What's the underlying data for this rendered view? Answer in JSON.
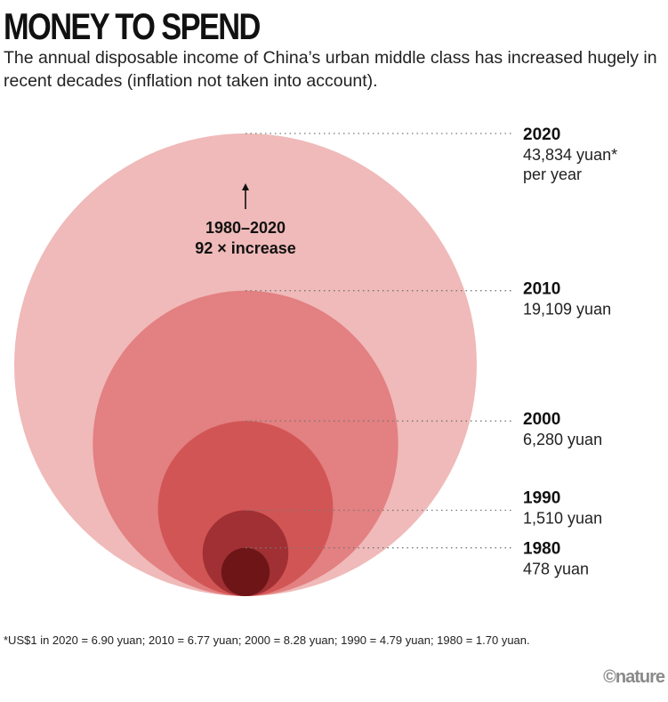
{
  "chart_data": {
    "type": "nested-circle",
    "title": "MONEY TO SPEND",
    "subtitle": "The annual disposable income of China’s urban middle class has increased hugely in recent decades (inflation not taken into account).",
    "unit": "yuan",
    "series": [
      {
        "year": "2020",
        "value": 43834,
        "label_lines": [
          "43,834 yuan*",
          "per year"
        ],
        "color": "#efbab9"
      },
      {
        "year": "2010",
        "value": 19109,
        "label_lines": [
          "19,109 yuan"
        ],
        "color": "#e38081"
      },
      {
        "year": "2000",
        "value": 6280,
        "label_lines": [
          "6,280 yuan"
        ],
        "color": "#d25555"
      },
      {
        "year": "1990",
        "value": 1510,
        "label_lines": [
          "1,510 yuan"
        ],
        "color": "#a03033"
      },
      {
        "year": "1980",
        "value": 478,
        "label_lines": [
          "478 yuan"
        ],
        "color": "#6e1518"
      }
    ],
    "annotation": {
      "period": "1980–2020",
      "text": "92 × increase"
    },
    "footnote": "*US$1 in 2020 = 6.90 yuan; 2010 = 6.77 yuan; 2000 = 8.28 yuan; 1990 = 4.79 yuan; 1980 = 1.70 yuan."
  },
  "credit": "©nature"
}
